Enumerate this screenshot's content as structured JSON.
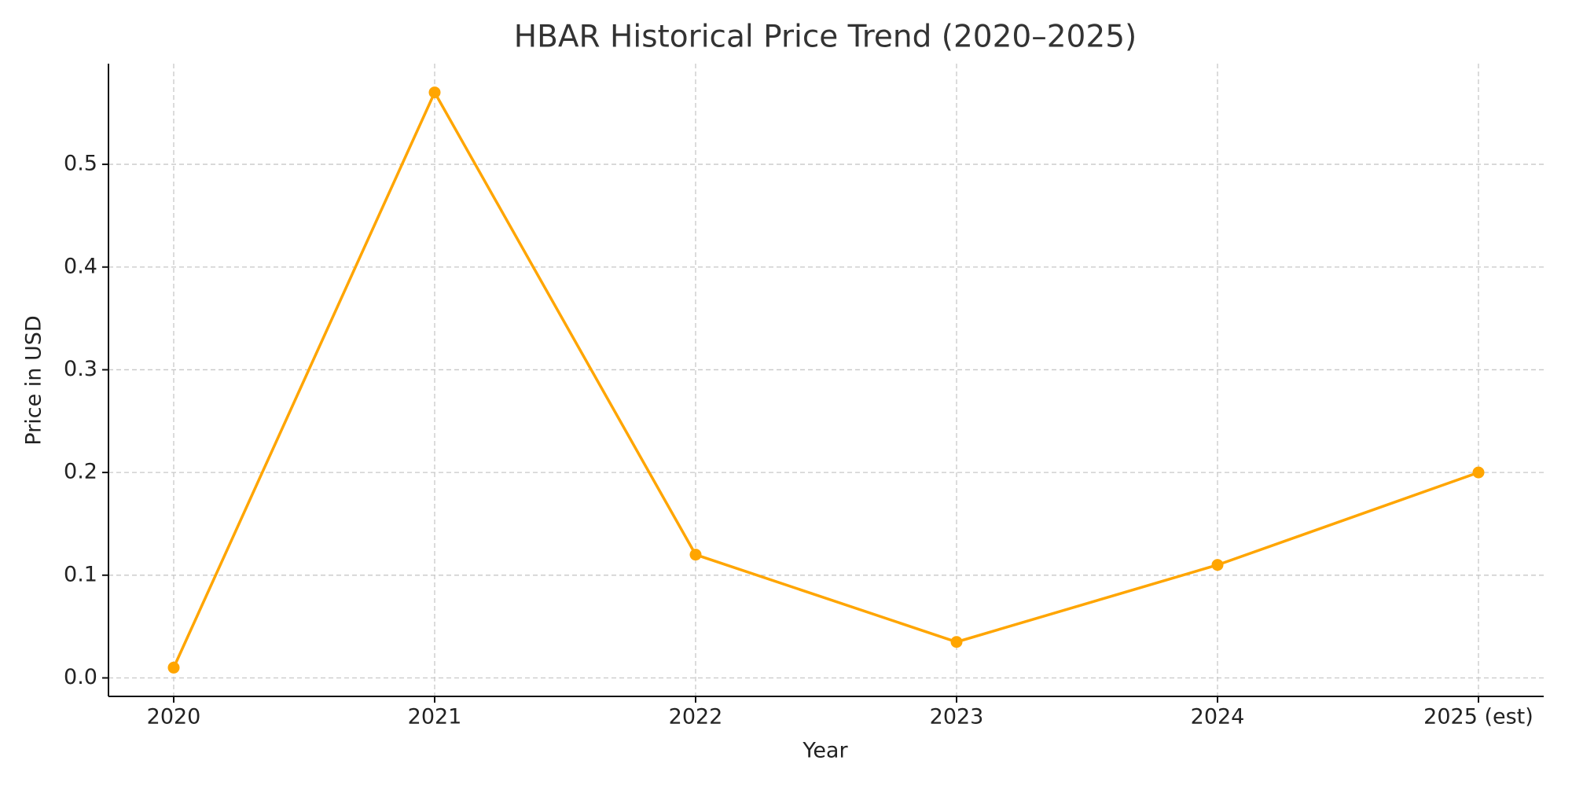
{
  "chart_data": {
    "type": "line",
    "title": "HBAR Historical Price Trend (2020–2025)",
    "x_label": "Year",
    "y_label": "Price in USD",
    "categories": [
      "2020",
      "2021",
      "2022",
      "2023",
      "2024",
      "2025 (est)"
    ],
    "series": [
      {
        "name": "HBAR",
        "color": "#FFA500",
        "values": [
          0.01,
          0.57,
          0.12,
          0.035,
          0.11,
          0.2
        ]
      }
    ],
    "ylim": [
      -0.018,
      0.598
    ],
    "yticks": [
      {
        "value": 0,
        "label": "0.0"
      },
      0.1,
      0.2,
      0.3,
      0.4,
      0.5
    ],
    "grid": true
  }
}
